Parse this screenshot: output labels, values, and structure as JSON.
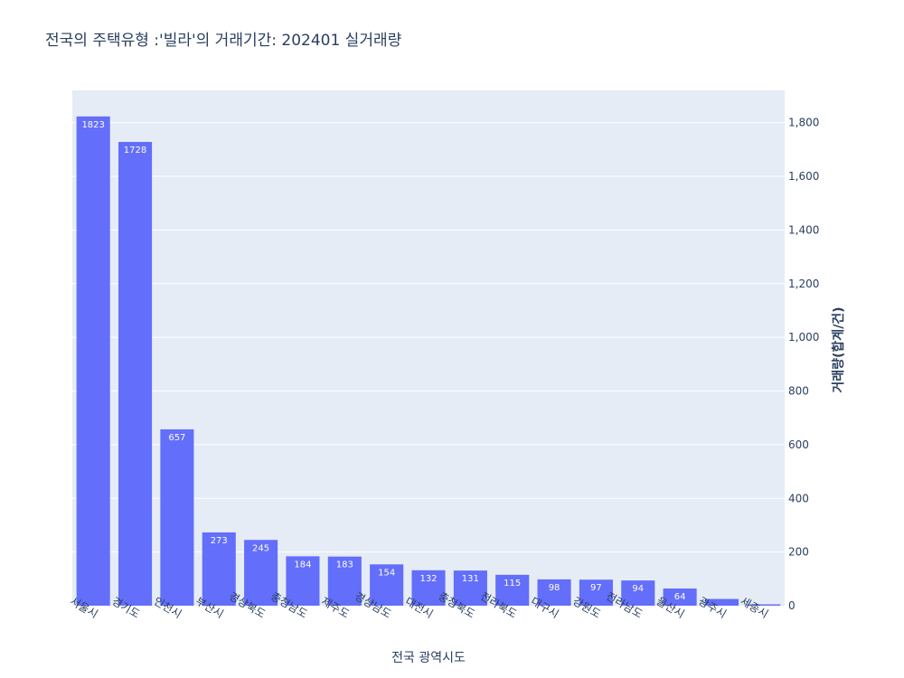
{
  "chart_data": {
    "type": "bar",
    "title": "전국의 주택유형 :'빌라'의 거래기간: 202401 실거래량",
    "xlabel": "전국 광역시도",
    "ylabel": "거래량(합계/건)",
    "categories": [
      "서울시",
      "경기도",
      "인천시",
      "부산시",
      "경상북도",
      "충청남도",
      "제주도",
      "경상남도",
      "대전시",
      "충청북도",
      "전라북도",
      "대구시",
      "강원도",
      "전라남도",
      "울산시",
      "광주시",
      "세종시"
    ],
    "values": [
      1823,
      1728,
      657,
      273,
      245,
      184,
      183,
      154,
      132,
      131,
      115,
      98,
      97,
      94,
      64,
      25,
      5
    ],
    "value_labels": [
      "1823",
      "1728",
      "657",
      "273",
      "245",
      "184",
      "183",
      "154",
      "132",
      "131",
      "115",
      "98",
      "97",
      "94",
      "64",
      "",
      ""
    ],
    "ylim": [
      0,
      1920
    ],
    "yticks": [
      0,
      200,
      400,
      600,
      800,
      1000,
      1200,
      1400,
      1600,
      1800
    ],
    "ytick_labels": [
      "0",
      "200",
      "400",
      "600",
      "800",
      "1,000",
      "1,200",
      "1,400",
      "1,600",
      "1,800"
    ],
    "y_axis_side": "right",
    "grid": true,
    "colors": {
      "bar": "#636efa",
      "plot_bg": "#e5ecf6",
      "grid": "#ffffff",
      "text": "#2a3f5f"
    }
  }
}
